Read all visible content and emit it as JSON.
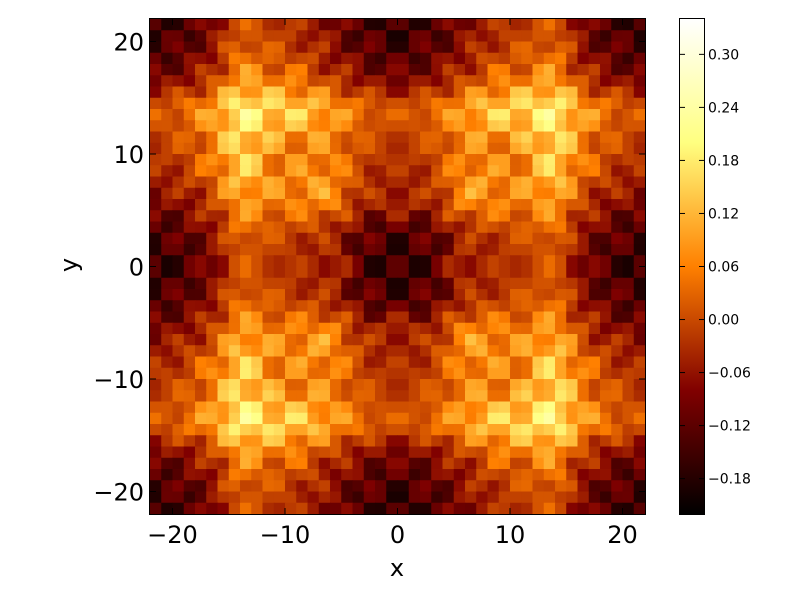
{
  "chart_data": {
    "type": "heatmap",
    "title": "",
    "xlabel": "x",
    "ylabel": "y",
    "xlim": [
      -22,
      22
    ],
    "ylim": [
      -22,
      22
    ],
    "x_ticks": [
      -20,
      -10,
      0,
      10,
      20
    ],
    "y_ticks": [
      -20,
      -10,
      0,
      10,
      20
    ],
    "x_tick_labels": [
      "−20",
      "−10",
      "0",
      "10",
      "20"
    ],
    "y_tick_labels": [
      "−20",
      "−10",
      "0",
      "10",
      "20"
    ],
    "grid": false,
    "colormap": "afmhot",
    "colormap_stops": [
      "#000000",
      "#800000",
      "#ff8000",
      "#ffff80",
      "#ffffff"
    ],
    "colorbar": {
      "vmin": -0.22,
      "vmax": 0.34,
      "ticks": [
        -0.18,
        -0.12,
        -0.06,
        0.0,
        0.06,
        0.12,
        0.18,
        0.24,
        0.3
      ],
      "tick_labels": [
        "−0.18",
        "−0.12",
        "−0.06",
        "0.00",
        "0.06",
        "0.12",
        "0.18",
        "0.24",
        "0.30"
      ]
    },
    "grid_resolution": [
      44,
      44
    ],
    "z_rows_top_to_bottom": []
  }
}
